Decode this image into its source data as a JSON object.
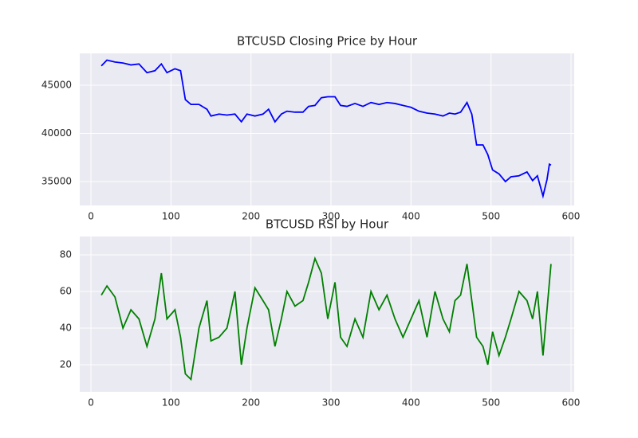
{
  "chart_data": [
    {
      "type": "line",
      "title": "BTCUSD Closing Price by Hour",
      "color": "#0000ff",
      "grid": true,
      "x": [
        13,
        20,
        30,
        40,
        50,
        60,
        70,
        80,
        88,
        95,
        105,
        112,
        118,
        125,
        135,
        145,
        150,
        160,
        170,
        180,
        188,
        195,
        205,
        215,
        222,
        230,
        238,
        245,
        255,
        265,
        272,
        280,
        288,
        296,
        305,
        312,
        320,
        330,
        340,
        350,
        360,
        370,
        380,
        390,
        400,
        410,
        420,
        430,
        440,
        448,
        455,
        462,
        470,
        476,
        482,
        490,
        496,
        502,
        510,
        518,
        525,
        535,
        545,
        552,
        558,
        565,
        570,
        573,
        575
      ],
      "values": [
        47000,
        47600,
        47400,
        47300,
        47100,
        47200,
        46300,
        46500,
        47200,
        46300,
        46700,
        46500,
        43500,
        43000,
        43000,
        42500,
        41800,
        42000,
        41900,
        42000,
        41200,
        42000,
        41800,
        42000,
        42500,
        41200,
        42000,
        42300,
        42200,
        42200,
        42800,
        42900,
        43700,
        43800,
        43800,
        42900,
        42800,
        43100,
        42800,
        43200,
        43000,
        43200,
        43100,
        42900,
        42700,
        42300,
        42100,
        42000,
        41800,
        42100,
        42000,
        42200,
        43200,
        42000,
        38800,
        38800,
        37800,
        36200,
        35800,
        35000,
        35500,
        35600,
        36000,
        35100,
        35600,
        33500,
        35200,
        36800,
        36700
      ],
      "xlim": [
        -14,
        604
      ],
      "xticks": [
        0,
        100,
        200,
        300,
        400,
        500,
        600
      ],
      "ylim": [
        32520,
        48300
      ],
      "yticks": [
        35000,
        40000,
        45000
      ]
    },
    {
      "type": "line",
      "title": "BTCUSD RSI by Hour",
      "color": "#008000",
      "grid": true,
      "x": [
        13,
        20,
        30,
        40,
        50,
        60,
        70,
        80,
        88,
        95,
        105,
        112,
        118,
        125,
        135,
        145,
        150,
        160,
        170,
        180,
        188,
        195,
        205,
        215,
        222,
        230,
        238,
        245,
        255,
        265,
        272,
        280,
        288,
        296,
        305,
        312,
        320,
        330,
        340,
        350,
        360,
        370,
        380,
        390,
        400,
        410,
        420,
        430,
        440,
        448,
        455,
        462,
        470,
        476,
        482,
        490,
        496,
        502,
        510,
        518,
        525,
        535,
        545,
        552,
        558,
        565,
        570,
        573,
        575
      ],
      "values": [
        58,
        63,
        57,
        40,
        50,
        45,
        30,
        45,
        70,
        45,
        50,
        35,
        15,
        12,
        40,
        55,
        33,
        35,
        40,
        60,
        20,
        40,
        62,
        55,
        50,
        30,
        45,
        60,
        52,
        55,
        65,
        78,
        70,
        45,
        65,
        35,
        30,
        45,
        35,
        60,
        50,
        58,
        45,
        35,
        45,
        55,
        35,
        60,
        45,
        38,
        55,
        58,
        75,
        55,
        35,
        30,
        20,
        38,
        25,
        35,
        45,
        60,
        55,
        45,
        60,
        25,
        50,
        65,
        75
      ],
      "xlim": [
        -14,
        604
      ],
      "xticks": [
        0,
        100,
        200,
        300,
        400,
        500,
        600
      ],
      "ylim": [
        5.2,
        90
      ],
      "yticks": [
        20,
        40,
        60,
        80
      ]
    }
  ]
}
